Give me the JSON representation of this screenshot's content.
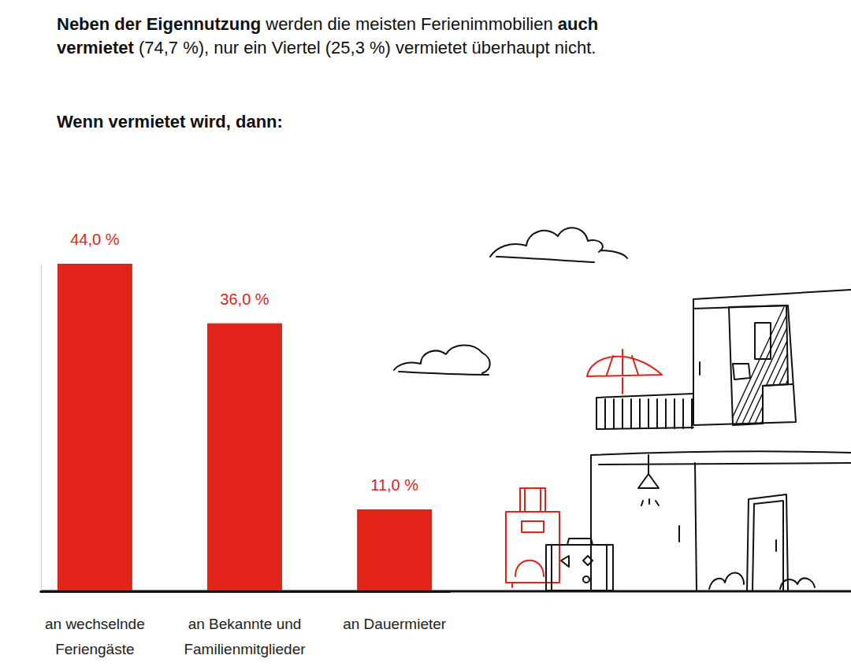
{
  "chart_data": {
    "type": "bar",
    "title": [
      [
        "Neben der Eigennutzung",
        " werden die meisten Ferienimmobilien ",
        "auch"
      ],
      [
        "vermietet",
        " (74,7 %), nur ein Viertel (25,3 %) vermietet überhaupt nicht."
      ]
    ],
    "subtitle": "Wenn vermietet wird, dann:",
    "categories": [
      "an wechselnde Feriengäste",
      "an Bekannte und Familienmitglieder",
      "an Dauermieter"
    ],
    "values": [
      44.0,
      36.0,
      11.0
    ],
    "value_labels": [
      "44,0 %",
      "36,0 %",
      "11,0 %"
    ],
    "color": "#e2231a",
    "ylim": [
      0,
      44
    ],
    "data_labels": true,
    "tick_labels": "x"
  }
}
